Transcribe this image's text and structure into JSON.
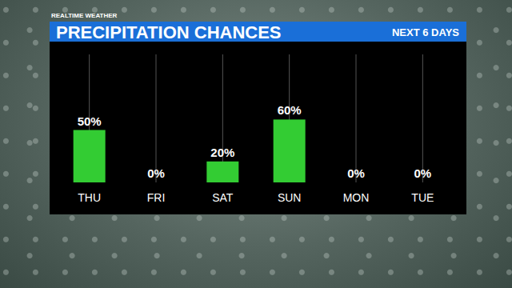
{
  "chart_data": {
    "type": "bar",
    "title": "PRECIPITATION CHANCES",
    "subtitle": "NEXT 6 DAYS",
    "annotations": [
      "REALTIME WEATHER"
    ],
    "categories": [
      "THU",
      "FRI",
      "SAT",
      "SUN",
      "MON",
      "TUE"
    ],
    "values": [
      50,
      0,
      20,
      60,
      0,
      0
    ],
    "value_labels": [
      "50%",
      "0%",
      "20%",
      "60%",
      "0%",
      "0%"
    ],
    "color": "#33cc33",
    "ylim": [
      0,
      100
    ],
    "data_labels": true,
    "tick_labels": "x"
  }
}
